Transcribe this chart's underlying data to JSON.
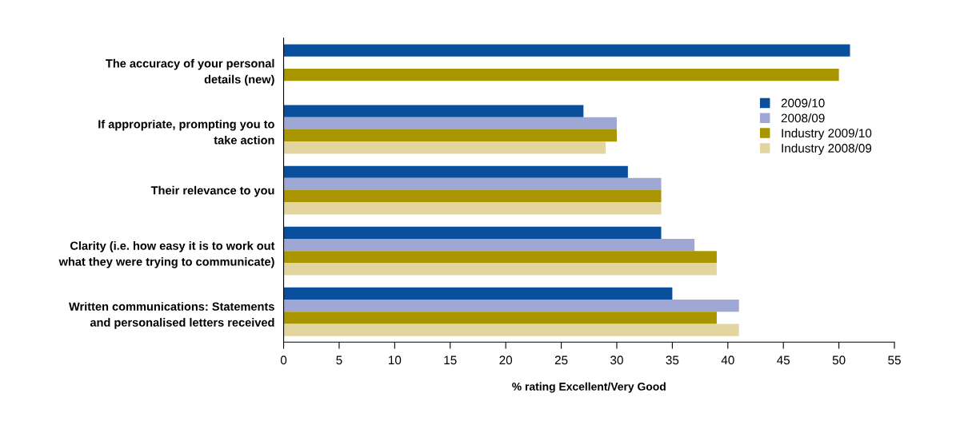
{
  "chart_data": {
    "type": "bar",
    "orientation": "horizontal",
    "xlabel": "% rating Excellent/Very Good",
    "categories": [
      "The accuracy of your personal\ndetails (new)",
      "If appropriate, prompting you to\ntake action",
      "Their relevance to you",
      "Clarity (i.e. how easy it is to work out\nwhat they were trying to communicate)",
      "Written communications: Statements\nand personalised letters received"
    ],
    "series": [
      {
        "name": "2009/10",
        "color": "#0a4f9c",
        "values": [
          51,
          27,
          31,
          34,
          35
        ]
      },
      {
        "name": "2008/09",
        "color": "#9fa8d4",
        "values": [
          null,
          30,
          34,
          37,
          41
        ]
      },
      {
        "name": "Industry 2009/10",
        "color": "#a89500",
        "values": [
          50,
          30,
          34,
          39,
          39
        ]
      },
      {
        "name": "Industry 2008/09",
        "color": "#e3d5a0",
        "values": [
          null,
          29,
          34,
          39,
          41
        ]
      }
    ],
    "xlim": [
      0,
      55
    ],
    "xticks": [
      0,
      5,
      10,
      15,
      20,
      25,
      30,
      35,
      40,
      45,
      50,
      55
    ],
    "grid": false,
    "legend": "top right"
  }
}
